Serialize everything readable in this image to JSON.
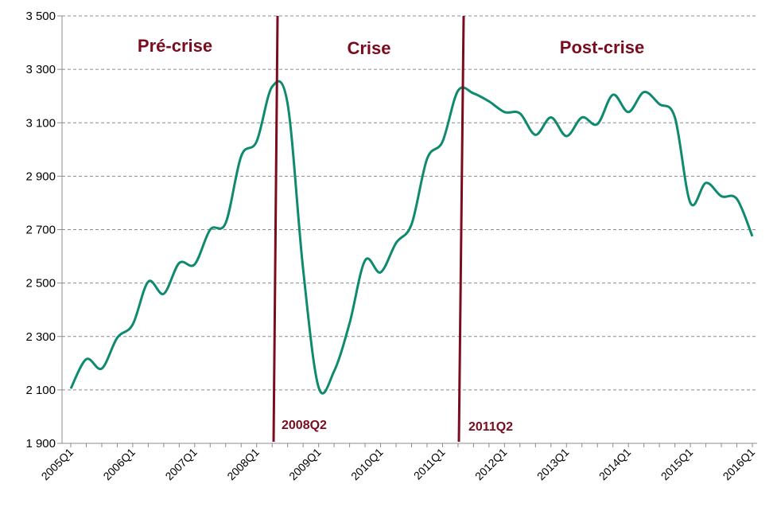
{
  "chart_data": {
    "type": "line",
    "title": "",
    "xlabel": "",
    "ylabel": "",
    "ylim": [
      1900,
      3500
    ],
    "yticks": [
      1900,
      2100,
      2300,
      2500,
      2700,
      2900,
      3100,
      3300,
      3500
    ],
    "ytick_labels": [
      "1 900",
      "2 100",
      "2 300",
      "2 500",
      "2 700",
      "2 900",
      "3 100",
      "3 300",
      "3 500"
    ],
    "xtick_labels": [
      "2005Q1",
      "2006Q1",
      "2007Q1",
      "2008Q1",
      "2009Q1",
      "2010Q1",
      "2011Q1",
      "2012Q1",
      "2013Q1",
      "2014Q1",
      "2015Q1",
      "2016Q1"
    ],
    "grid": true,
    "line_color": "#0e8a6e",
    "marker_color": "#7a0c1f",
    "series": [
      {
        "x": [
          "2005Q1",
          "2005Q2",
          "2005Q3",
          "2005Q4",
          "2006Q1",
          "2006Q2",
          "2006Q3",
          "2006Q4",
          "2007Q1",
          "2007Q2",
          "2007Q3",
          "2007Q4",
          "2008Q1",
          "2008Q2",
          "2008Q3",
          "2008Q4",
          "2009Q1",
          "2009Q2",
          "2009Q3",
          "2009Q4",
          "2010Q1",
          "2010Q2",
          "2010Q3",
          "2010Q4",
          "2011Q1",
          "2011Q2",
          "2011Q3",
          "2011Q4",
          "2012Q1",
          "2012Q2",
          "2012Q3",
          "2012Q4",
          "2013Q1",
          "2013Q2",
          "2013Q3",
          "2013Q4",
          "2014Q1",
          "2014Q2",
          "2014Q3",
          "2014Q4",
          "2015Q1",
          "2015Q2",
          "2015Q3",
          "2015Q4",
          "2016Q1"
        ],
        "values": [
          2105,
          2215,
          2180,
          2295,
          2345,
          2505,
          2460,
          2575,
          2570,
          2700,
          2725,
          2975,
          3030,
          3235,
          3170,
          2550,
          2110,
          2170,
          2350,
          2585,
          2540,
          2650,
          2720,
          2965,
          3030,
          3220,
          3210,
          3180,
          3140,
          3135,
          3055,
          3120,
          3050,
          3120,
          3095,
          3205,
          3140,
          3215,
          3170,
          3120,
          2800,
          2875,
          2825,
          2815,
          2675
        ]
      }
    ],
    "phases": [
      "Pré-crise",
      "Crise",
      "Post-crise"
    ],
    "markers": [
      {
        "label": "2008Q2"
      },
      {
        "label": "2011Q2"
      }
    ]
  }
}
